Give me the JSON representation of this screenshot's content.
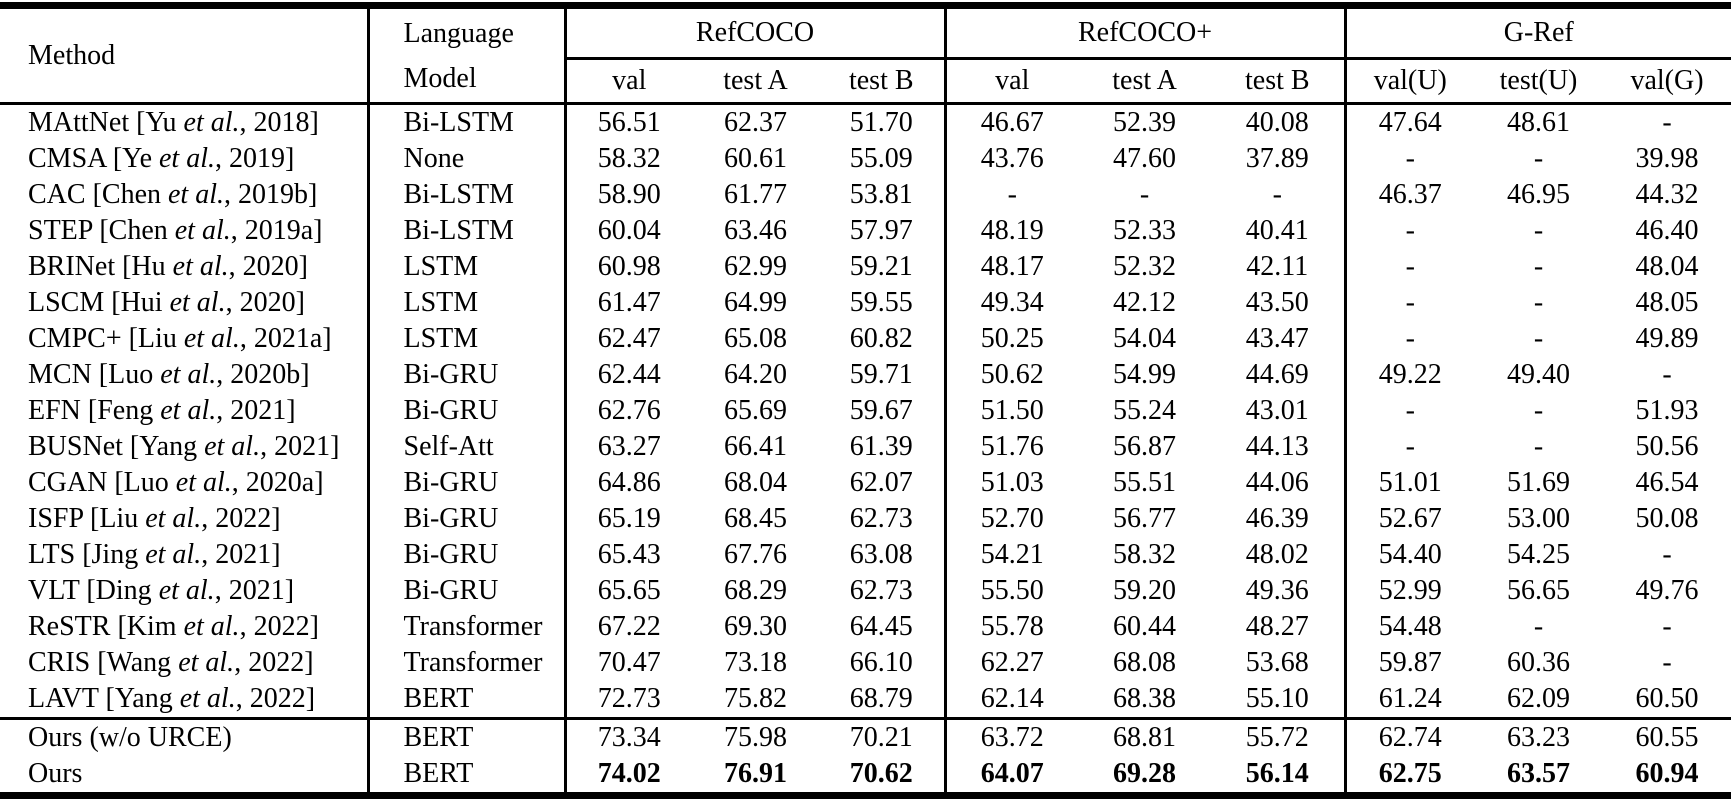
{
  "table": {
    "header": {
      "method": "Method",
      "language_model_line1": "Language",
      "language_model_line2": "Model",
      "groups": [
        {
          "label": "RefCOCO",
          "subcols": [
            "val",
            "test A",
            "test B"
          ]
        },
        {
          "label": "RefCOCO+",
          "subcols": [
            "val",
            "test A",
            "test B"
          ]
        },
        {
          "label": "G-Ref",
          "subcols": [
            "val(U)",
            "test(U)",
            "val(G)"
          ]
        }
      ]
    },
    "rows": [
      {
        "method": "MAttNet [Yu et al., 2018]",
        "language_model": "Bi-LSTM",
        "values": [
          "56.51",
          "62.37",
          "51.70",
          "46.67",
          "52.39",
          "40.08",
          "47.64",
          "48.61",
          "-"
        ],
        "bold_values": false,
        "separator_above": false
      },
      {
        "method": "CMSA [Ye et al., 2019]",
        "language_model": "None",
        "values": [
          "58.32",
          "60.61",
          "55.09",
          "43.76",
          "47.60",
          "37.89",
          "-",
          "-",
          "39.98"
        ],
        "bold_values": false,
        "separator_above": false
      },
      {
        "method": "CAC [Chen et al., 2019b]",
        "language_model": "Bi-LSTM",
        "values": [
          "58.90",
          "61.77",
          "53.81",
          "-",
          "-",
          "-",
          "46.37",
          "46.95",
          "44.32"
        ],
        "bold_values": false,
        "separator_above": false
      },
      {
        "method": "STEP [Chen et al., 2019a]",
        "language_model": "Bi-LSTM",
        "values": [
          "60.04",
          "63.46",
          "57.97",
          "48.19",
          "52.33",
          "40.41",
          "-",
          "-",
          "46.40"
        ],
        "bold_values": false,
        "separator_above": false
      },
      {
        "method": "BRINet [Hu et al., 2020]",
        "language_model": "LSTM",
        "values": [
          "60.98",
          "62.99",
          "59.21",
          "48.17",
          "52.32",
          "42.11",
          "-",
          "-",
          "48.04"
        ],
        "bold_values": false,
        "separator_above": false
      },
      {
        "method": "LSCM [Hui et al., 2020]",
        "language_model": "LSTM",
        "values": [
          "61.47",
          "64.99",
          "59.55",
          "49.34",
          "42.12",
          "43.50",
          "-",
          "-",
          "48.05"
        ],
        "bold_values": false,
        "separator_above": false
      },
      {
        "method": "CMPC+ [Liu et al., 2021a]",
        "language_model": "LSTM",
        "values": [
          "62.47",
          "65.08",
          "60.82",
          "50.25",
          "54.04",
          "43.47",
          "-",
          "-",
          "49.89"
        ],
        "bold_values": false,
        "separator_above": false
      },
      {
        "method": "MCN [Luo et al., 2020b]",
        "language_model": "Bi-GRU",
        "values": [
          "62.44",
          "64.20",
          "59.71",
          "50.62",
          "54.99",
          "44.69",
          "49.22",
          "49.40",
          "-"
        ],
        "bold_values": false,
        "separator_above": false
      },
      {
        "method": "EFN [Feng et al., 2021]",
        "language_model": "Bi-GRU",
        "values": [
          "62.76",
          "65.69",
          "59.67",
          "51.50",
          "55.24",
          "43.01",
          "-",
          "-",
          "51.93"
        ],
        "bold_values": false,
        "separator_above": false
      },
      {
        "method": "BUSNet [Yang et al., 2021]",
        "language_model": "Self-Att",
        "values": [
          "63.27",
          "66.41",
          "61.39",
          "51.76",
          "56.87",
          "44.13",
          "-",
          "-",
          "50.56"
        ],
        "bold_values": false,
        "separator_above": false
      },
      {
        "method": "CGAN [Luo et al., 2020a]",
        "language_model": "Bi-GRU",
        "values": [
          "64.86",
          "68.04",
          "62.07",
          "51.03",
          "55.51",
          "44.06",
          "51.01",
          "51.69",
          "46.54"
        ],
        "bold_values": false,
        "separator_above": false
      },
      {
        "method": "ISFP [Liu et al., 2022]",
        "language_model": "Bi-GRU",
        "values": [
          "65.19",
          "68.45",
          "62.73",
          "52.70",
          "56.77",
          "46.39",
          "52.67",
          "53.00",
          "50.08"
        ],
        "bold_values": false,
        "separator_above": false
      },
      {
        "method": "LTS [Jing et al., 2021]",
        "language_model": "Bi-GRU",
        "values": [
          "65.43",
          "67.76",
          "63.08",
          "54.21",
          "58.32",
          "48.02",
          "54.40",
          "54.25",
          "-"
        ],
        "bold_values": false,
        "separator_above": false
      },
      {
        "method": "VLT [Ding et al., 2021]",
        "language_model": "Bi-GRU",
        "values": [
          "65.65",
          "68.29",
          "62.73",
          "55.50",
          "59.20",
          "49.36",
          "52.99",
          "56.65",
          "49.76"
        ],
        "bold_values": false,
        "separator_above": false
      },
      {
        "method": "ReSTR [Kim et al., 2022]",
        "language_model": "Transformer",
        "values": [
          "67.22",
          "69.30",
          "64.45",
          "55.78",
          "60.44",
          "48.27",
          "54.48",
          "-",
          "-"
        ],
        "bold_values": false,
        "separator_above": false
      },
      {
        "method": "CRIS [Wang et al., 2022]",
        "language_model": "Transformer",
        "values": [
          "70.47",
          "73.18",
          "66.10",
          "62.27",
          "68.08",
          "53.68",
          "59.87",
          "60.36",
          "-"
        ],
        "bold_values": false,
        "separator_above": false
      },
      {
        "method": "LAVT [Yang et al., 2022]",
        "language_model": "BERT",
        "values": [
          "72.73",
          "75.82",
          "68.79",
          "62.14",
          "68.38",
          "55.10",
          "61.24",
          "62.09",
          "60.50"
        ],
        "bold_values": false,
        "separator_above": false
      },
      {
        "method": "Ours (w/o URCE)",
        "language_model": "BERT",
        "values": [
          "73.34",
          "75.98",
          "70.21",
          "63.72",
          "68.81",
          "55.72",
          "62.74",
          "63.23",
          "60.55"
        ],
        "bold_values": false,
        "separator_above": true
      },
      {
        "method": "Ours",
        "language_model": "BERT",
        "values": [
          "74.02",
          "76.91",
          "70.62",
          "64.07",
          "69.28",
          "56.14",
          "62.75",
          "63.57",
          "60.94"
        ],
        "bold_values": true,
        "separator_above": false
      }
    ]
  }
}
